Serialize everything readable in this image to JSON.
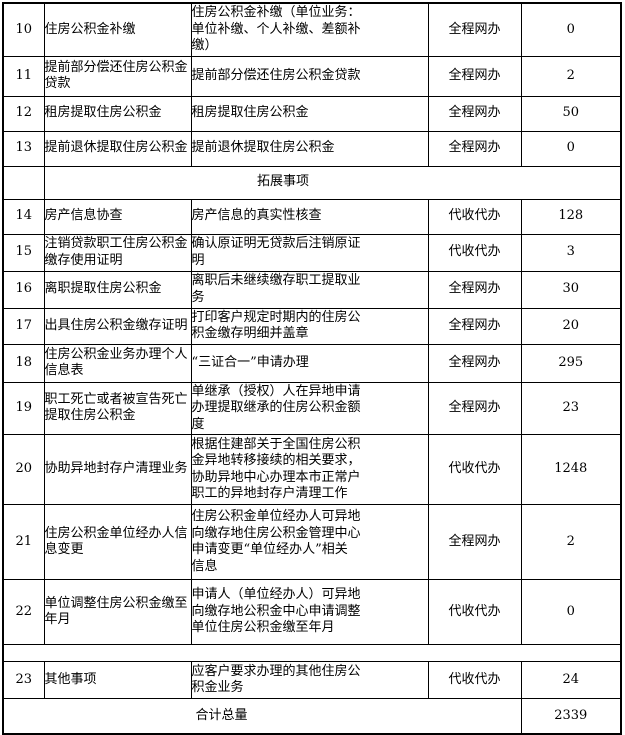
{
  "accent_colors": {
    "border": "#000000",
    "text": "#000000",
    "background": "#ffffff"
  },
  "table": {
    "section_label": "拓展事项",
    "total_label": "合计总量",
    "total_value": "2339",
    "rows": [
      {
        "kind": "item",
        "no": "10",
        "name": "住房公积金补缴",
        "desc": "住房公积金补缴（单位业务：\n单位补缴、个人补缴、差额补\n缴）",
        "mode": "全程网办",
        "count": "0"
      },
      {
        "kind": "item",
        "no": "11",
        "name": "提前部分偿还住房公积金\n贷款",
        "desc": "提前部分偿还住房公积金贷款",
        "mode": "全程网办",
        "count": "2"
      },
      {
        "kind": "item",
        "no": "12",
        "name": "租房提取住房公积金",
        "desc": "租房提取住房公积金",
        "mode": "全程网办",
        "count": "50"
      },
      {
        "kind": "item",
        "no": "13",
        "name": "提前退休提取住房公积金",
        "desc": "提前退休提取住房公积金",
        "mode": "全程网办",
        "count": "0"
      },
      {
        "kind": "section",
        "label": "拓展事项"
      },
      {
        "kind": "item",
        "no": "14",
        "name": "房产信息协查",
        "desc": "房产信息的真实性核查",
        "mode": "代收代办",
        "count": "128"
      },
      {
        "kind": "item",
        "no": "15",
        "name": "注销贷款职工住房公积金\n缴存使用证明",
        "desc": "确认原证明无贷款后注销原证\n明",
        "mode": "代收代办",
        "count": "3"
      },
      {
        "kind": "item",
        "no": "16",
        "name": "离职提取住房公积金",
        "desc": "离职后未继续缴存职工提取业\n务",
        "mode": "全程网办",
        "count": "30"
      },
      {
        "kind": "item",
        "no": "17",
        "name": "出具住房公积金缴存证明",
        "desc": "打印客户规定时期内的住房公\n积金缴存明细并盖章",
        "mode": "全程网办",
        "count": "20"
      },
      {
        "kind": "item",
        "no": "18",
        "name": "住房公积金业务办理个人\n信息表",
        "desc": "“三证合一”申请办理",
        "mode": "全程网办",
        "count": "295"
      },
      {
        "kind": "item",
        "no": "19",
        "name": "职工死亡或者被宣告死亡\n提取住房公积金",
        "desc": "单继承（授权）人在异地申请\n办理提取继承的住房公积金额\n度",
        "mode": "全程网办",
        "count": "23"
      },
      {
        "kind": "item",
        "no": "20",
        "name": "协助异地封存户清理业务",
        "desc": "根据住建部关于全国住房公积\n金异地转移接续的相关要求，\n协助异地中心办理本市正常户\n职工的异地封存户清理工作",
        "mode": "代收代办",
        "count": "1248"
      },
      {
        "kind": "item",
        "no": "21",
        "name": "住房公积金单位经办人信\n息变更",
        "desc": "住房公积金单位经办人可异地\n向缴存地住房公积金管理中心\n申请变更“单位经办人”相关\n信息",
        "mode": "全程网办",
        "count": "2"
      },
      {
        "kind": "item",
        "no": "22",
        "name": "单位调整住房公积金缴至\n年月",
        "desc": "申请人（单位经办人）可异地\n向缴存地公积金中心申请调整\n单位住房公积金缴至年月",
        "mode": "代收代办",
        "count": "0"
      },
      {
        "kind": "spacer"
      },
      {
        "kind": "item",
        "no": "23",
        "name": "其他事项",
        "desc": "应客户要求办理的其他住房公\n积金业务",
        "mode": "代收代办",
        "count": "24"
      },
      {
        "kind": "total",
        "label": "合计总量",
        "value": "2339"
      }
    ]
  }
}
